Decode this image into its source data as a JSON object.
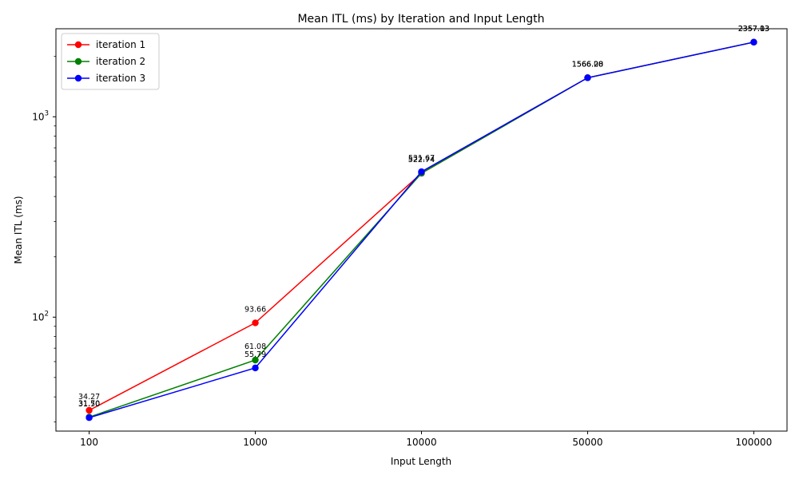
{
  "chart_data": {
    "type": "line",
    "title": "Mean ITL (ms) by Iteration and Input Length",
    "xlabel": "Input Length",
    "ylabel": "Mean ITL (ms)",
    "y_scale": "log",
    "ylim": [
      27,
      2750
    ],
    "x": [
      "100",
      "1000",
      "10000",
      "50000",
      "100000"
    ],
    "y_tick_labels": [
      {
        "value": 100,
        "base": "10",
        "exp": "2"
      },
      {
        "value": 1000,
        "base": "10",
        "exp": "3"
      }
    ],
    "legend_position": "upper-left",
    "grid": false,
    "series": [
      {
        "name": "iteration 1",
        "color": "#ff0000",
        "values": [
          34.27,
          93.66,
          522.74,
          1566.28,
          2357.13
        ],
        "labels": [
          "34.27",
          "93.66",
          "522.74",
          "1566.28",
          "2357.13"
        ]
      },
      {
        "name": "iteration 2",
        "color": "#008000",
        "values": [
          31.7,
          61.08,
          522.74,
          1566.28,
          2357.13
        ],
        "labels": [
          "31.70",
          "61.08",
          "522.74",
          "1566.28",
          "2357.13"
        ]
      },
      {
        "name": "iteration 3",
        "color": "#0000ff",
        "values": [
          31.5,
          55.79,
          531.67,
          1566.0,
          2357.03
        ],
        "labels": [
          "31.50",
          "55.79",
          "531.67",
          "1566.00",
          "2357.03"
        ]
      }
    ]
  }
}
